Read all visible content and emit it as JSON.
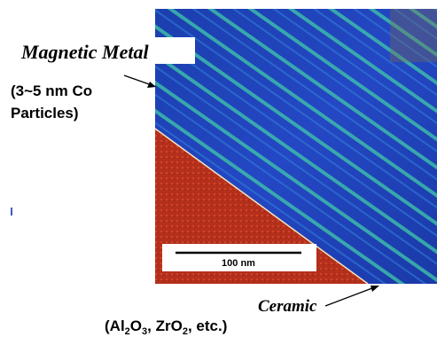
{
  "labels": {
    "magnetic_metal": "Magnetic Metal",
    "co_size_line1": "(3~5 nm Co",
    "co_size_line2": "Particles)",
    "scale_bar": "100 nm",
    "ceramic": "Ceramic",
    "ceramic_formula": [
      "(Al",
      "2",
      "O",
      "3",
      ", ZrO",
      "2",
      ", etc.)"
    ]
  }
}
